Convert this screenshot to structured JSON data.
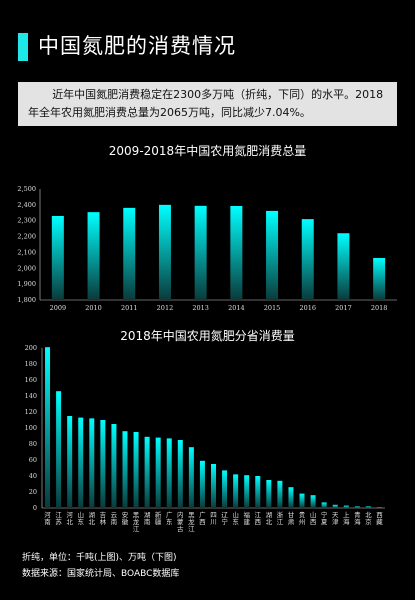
{
  "page": {
    "title": "中国氮肥的消费情况",
    "summary": "近年中国氮肥消费稳定在2300多万吨（折纯，下同）的水平。2018年全年农用氮肥消费总量为2065万吨，同比减少7.04%。",
    "unit_note": "折纯，单位：千吨(上图)、万吨（下图)",
    "source_note": "数据来源：国家统计局、BOABC数据库"
  },
  "colors": {
    "accent": "#1ee8e8",
    "bar_top": "#00ffff",
    "bar_bottom": "#0a3a3a"
  },
  "chart_data": [
    {
      "type": "bar",
      "title": "2009-2018年中国农用氮肥消费总量",
      "categories": [
        "2009",
        "2010",
        "2011",
        "2012",
        "2013",
        "2014",
        "2015",
        "2016",
        "2017",
        "2018"
      ],
      "values": [
        2330,
        2354,
        2381,
        2400,
        2394,
        2393,
        2362,
        2310,
        2221,
        2065
      ],
      "ylim": [
        1800,
        2500
      ],
      "yticks": [
        "1,800",
        "1,900",
        "2,000",
        "2,100",
        "2,200",
        "2,300",
        "2,400",
        "2,500"
      ]
    },
    {
      "type": "bar",
      "title": "2018年中国农用氮肥分省消费量",
      "categories": [
        "河南",
        "山东",
        "河北",
        "江苏",
        "湖北",
        "安徽",
        "四川",
        "云南",
        "黑龙江",
        "湖南",
        "广西",
        "新疆",
        "内蒙古",
        "吉林",
        "广东",
        "陕西",
        "辽宁",
        "江西",
        "山西",
        "福建",
        "重庆",
        "浙江",
        "甘肃",
        "贵州",
        "宁夏",
        "天津",
        "上海",
        "青海",
        "北京",
        "海南",
        "西藏"
      ],
      "labels": [
        "河南",
        "江苏",
        "河北",
        "山东",
        "湖北",
        "吉林",
        "云南",
        "安徽",
        "黑龙江",
        "湖南",
        "新疆",
        "广东",
        "内蒙古",
        "黑龙江",
        "广西",
        "四川",
        "辽宁",
        "山东",
        "福建",
        "江西",
        "湖北",
        "浙江",
        "甘肃",
        "贵州",
        "山西",
        "宁夏",
        "天津",
        "上海",
        "青海",
        "北京",
        "西藏"
      ],
      "values": [
        201,
        146,
        115,
        113,
        112,
        110,
        105,
        96,
        95,
        89,
        88,
        87,
        85,
        76,
        59,
        55,
        47,
        42,
        41,
        40,
        35,
        34,
        26,
        18,
        16,
        7,
        4,
        3,
        2,
        2,
        1
      ],
      "ylim": [
        0,
        200
      ],
      "yticks": [
        "0",
        "20",
        "40",
        "60",
        "80",
        "100",
        "120",
        "140",
        "160",
        "180",
        "200"
      ]
    }
  ]
}
